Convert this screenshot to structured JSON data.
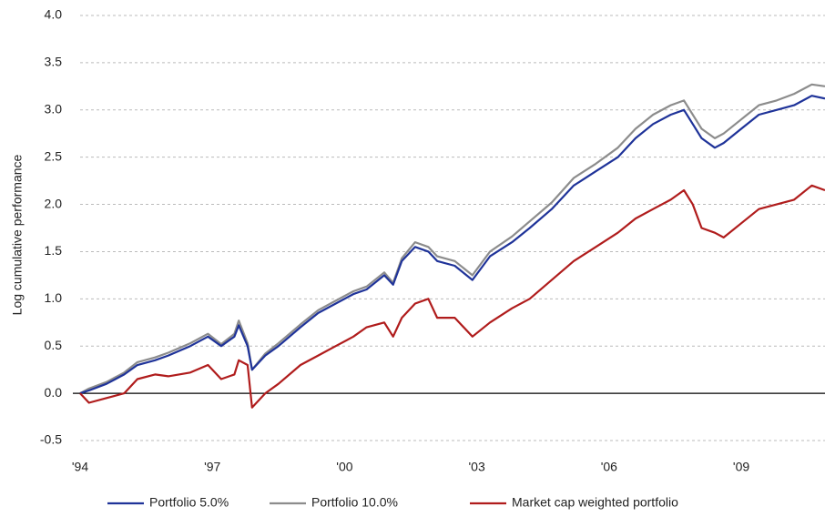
{
  "chart_data": {
    "type": "line",
    "y_label": "Log cumulative performance",
    "x": [
      1994.0,
      1994.2,
      1994.6,
      1995.0,
      1995.3,
      1995.7,
      1996.0,
      1996.5,
      1996.9,
      1997.2,
      1997.5,
      1997.6,
      1997.8,
      1997.9,
      1998.2,
      1998.5,
      1999.0,
      1999.4,
      1999.8,
      2000.2,
      2000.5,
      2000.9,
      2001.1,
      2001.3,
      2001.6,
      2001.9,
      2002.1,
      2002.5,
      2002.9,
      2003.3,
      2003.8,
      2004.2,
      2004.7,
      2005.2,
      2005.7,
      2006.2,
      2006.6,
      2007.0,
      2007.4,
      2007.7,
      2007.9,
      2008.1,
      2008.4,
      2008.6,
      2009.0,
      2009.4,
      2009.8,
      2010.2,
      2010.6,
      2010.9
    ],
    "series": [
      {
        "name": "Portfolio 10.0%",
        "color": "#8c8c8c",
        "values": [
          0,
          0.05,
          0.12,
          0.22,
          0.33,
          0.38,
          0.43,
          0.53,
          0.63,
          0.52,
          0.63,
          0.77,
          0.53,
          0.25,
          0.42,
          0.53,
          0.73,
          0.88,
          0.98,
          1.08,
          1.13,
          1.28,
          1.17,
          1.43,
          1.6,
          1.55,
          1.45,
          1.4,
          1.25,
          1.5,
          1.66,
          1.82,
          2.02,
          2.28,
          2.43,
          2.6,
          2.8,
          2.95,
          3.05,
          3.1,
          2.95,
          2.8,
          2.7,
          2.75,
          2.9,
          3.05,
          3.1,
          3.17,
          3.27,
          3.25
        ]
      },
      {
        "name": "Portfolio 5.0%",
        "color": "#1f3399",
        "values": [
          0,
          0.03,
          0.1,
          0.2,
          0.3,
          0.35,
          0.4,
          0.5,
          0.6,
          0.5,
          0.6,
          0.72,
          0.5,
          0.25,
          0.4,
          0.5,
          0.7,
          0.85,
          0.95,
          1.05,
          1.1,
          1.25,
          1.15,
          1.4,
          1.55,
          1.5,
          1.4,
          1.35,
          1.2,
          1.45,
          1.6,
          1.75,
          1.95,
          2.2,
          2.35,
          2.5,
          2.7,
          2.85,
          2.95,
          3.0,
          2.85,
          2.7,
          2.6,
          2.65,
          2.8,
          2.95,
          3.0,
          3.05,
          3.15,
          3.12
        ]
      },
      {
        "name": "Market cap weighted portfolio",
        "color": "#b01c1c",
        "values": [
          0,
          -0.1,
          -0.05,
          0,
          0.15,
          0.2,
          0.18,
          0.22,
          0.3,
          0.15,
          0.2,
          0.35,
          0.3,
          -0.15,
          0,
          0.1,
          0.3,
          0.4,
          0.5,
          0.6,
          0.7,
          0.75,
          0.6,
          0.8,
          0.95,
          1.0,
          0.8,
          0.8,
          0.6,
          0.75,
          0.9,
          1.0,
          1.2,
          1.4,
          1.55,
          1.7,
          1.85,
          1.95,
          2.05,
          2.15,
          2.0,
          1.75,
          1.7,
          1.65,
          1.8,
          1.95,
          2.0,
          2.05,
          2.2,
          2.15
        ]
      }
    ],
    "legend_order": [
      1,
      0,
      2
    ],
    "xlim": [
      1994,
      2010.9
    ],
    "xticks": [
      {
        "value": 1994,
        "label": "'94"
      },
      {
        "value": 1997,
        "label": "'97"
      },
      {
        "value": 2000,
        "label": "'00"
      },
      {
        "value": 2003,
        "label": "'03"
      },
      {
        "value": 2006,
        "label": "'06"
      },
      {
        "value": 2009,
        "label": "'09"
      }
    ],
    "ylim": [
      -0.5,
      4.0
    ],
    "yticks": [
      -0.5,
      {
        "value": 0,
        "label": "0.0"
      },
      0.5,
      {
        "value": 1,
        "label": "1.0"
      },
      1.5,
      {
        "value": 2,
        "label": "2.0"
      },
      2.5,
      {
        "value": 3,
        "label": "3.0"
      },
      3.5,
      {
        "value": 4,
        "label": "4.0"
      }
    ],
    "grid": true
  }
}
